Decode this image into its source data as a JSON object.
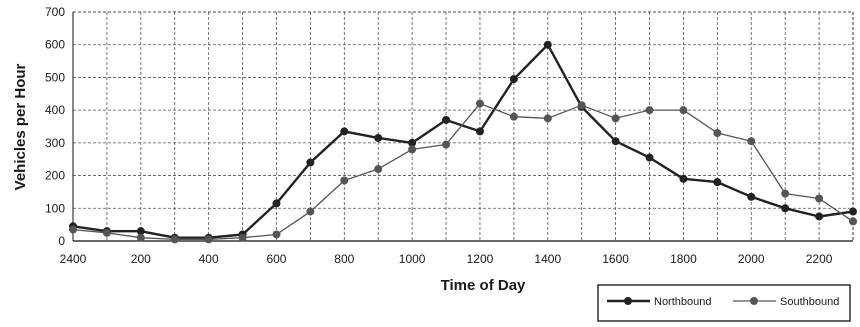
{
  "chart_data": {
    "type": "line",
    "xlabel": "Time of Day",
    "ylabel": "Vehicles per Hour",
    "ylim": [
      0,
      700
    ],
    "yticks": [
      0,
      100,
      200,
      300,
      400,
      500,
      600,
      700
    ],
    "xlim": [
      0,
      23
    ],
    "xtick_labels": [
      "2400",
      "200",
      "400",
      "600",
      "800",
      "1000",
      "1200",
      "1400",
      "1600",
      "1800",
      "2000",
      "2200"
    ],
    "x": [
      0,
      1,
      2,
      3,
      4,
      5,
      6,
      7,
      8,
      9,
      10,
      11,
      12,
      13,
      14,
      15,
      16,
      17,
      18,
      19,
      20,
      21,
      22,
      23
    ],
    "grid": true,
    "legend_position": "bottom-right",
    "series": [
      {
        "name": "Northbound",
        "color": "#222222",
        "values": [
          45,
          30,
          30,
          10,
          10,
          20,
          115,
          240,
          335,
          315,
          300,
          370,
          335,
          495,
          600,
          410,
          305,
          255,
          190,
          180,
          135,
          100,
          75,
          90
        ]
      },
      {
        "name": "Southbound",
        "color": "#555555",
        "values": [
          35,
          25,
          10,
          5,
          5,
          10,
          20,
          90,
          185,
          220,
          280,
          295,
          420,
          380,
          375,
          415,
          375,
          400,
          400,
          330,
          305,
          145,
          130,
          60
        ]
      }
    ]
  }
}
